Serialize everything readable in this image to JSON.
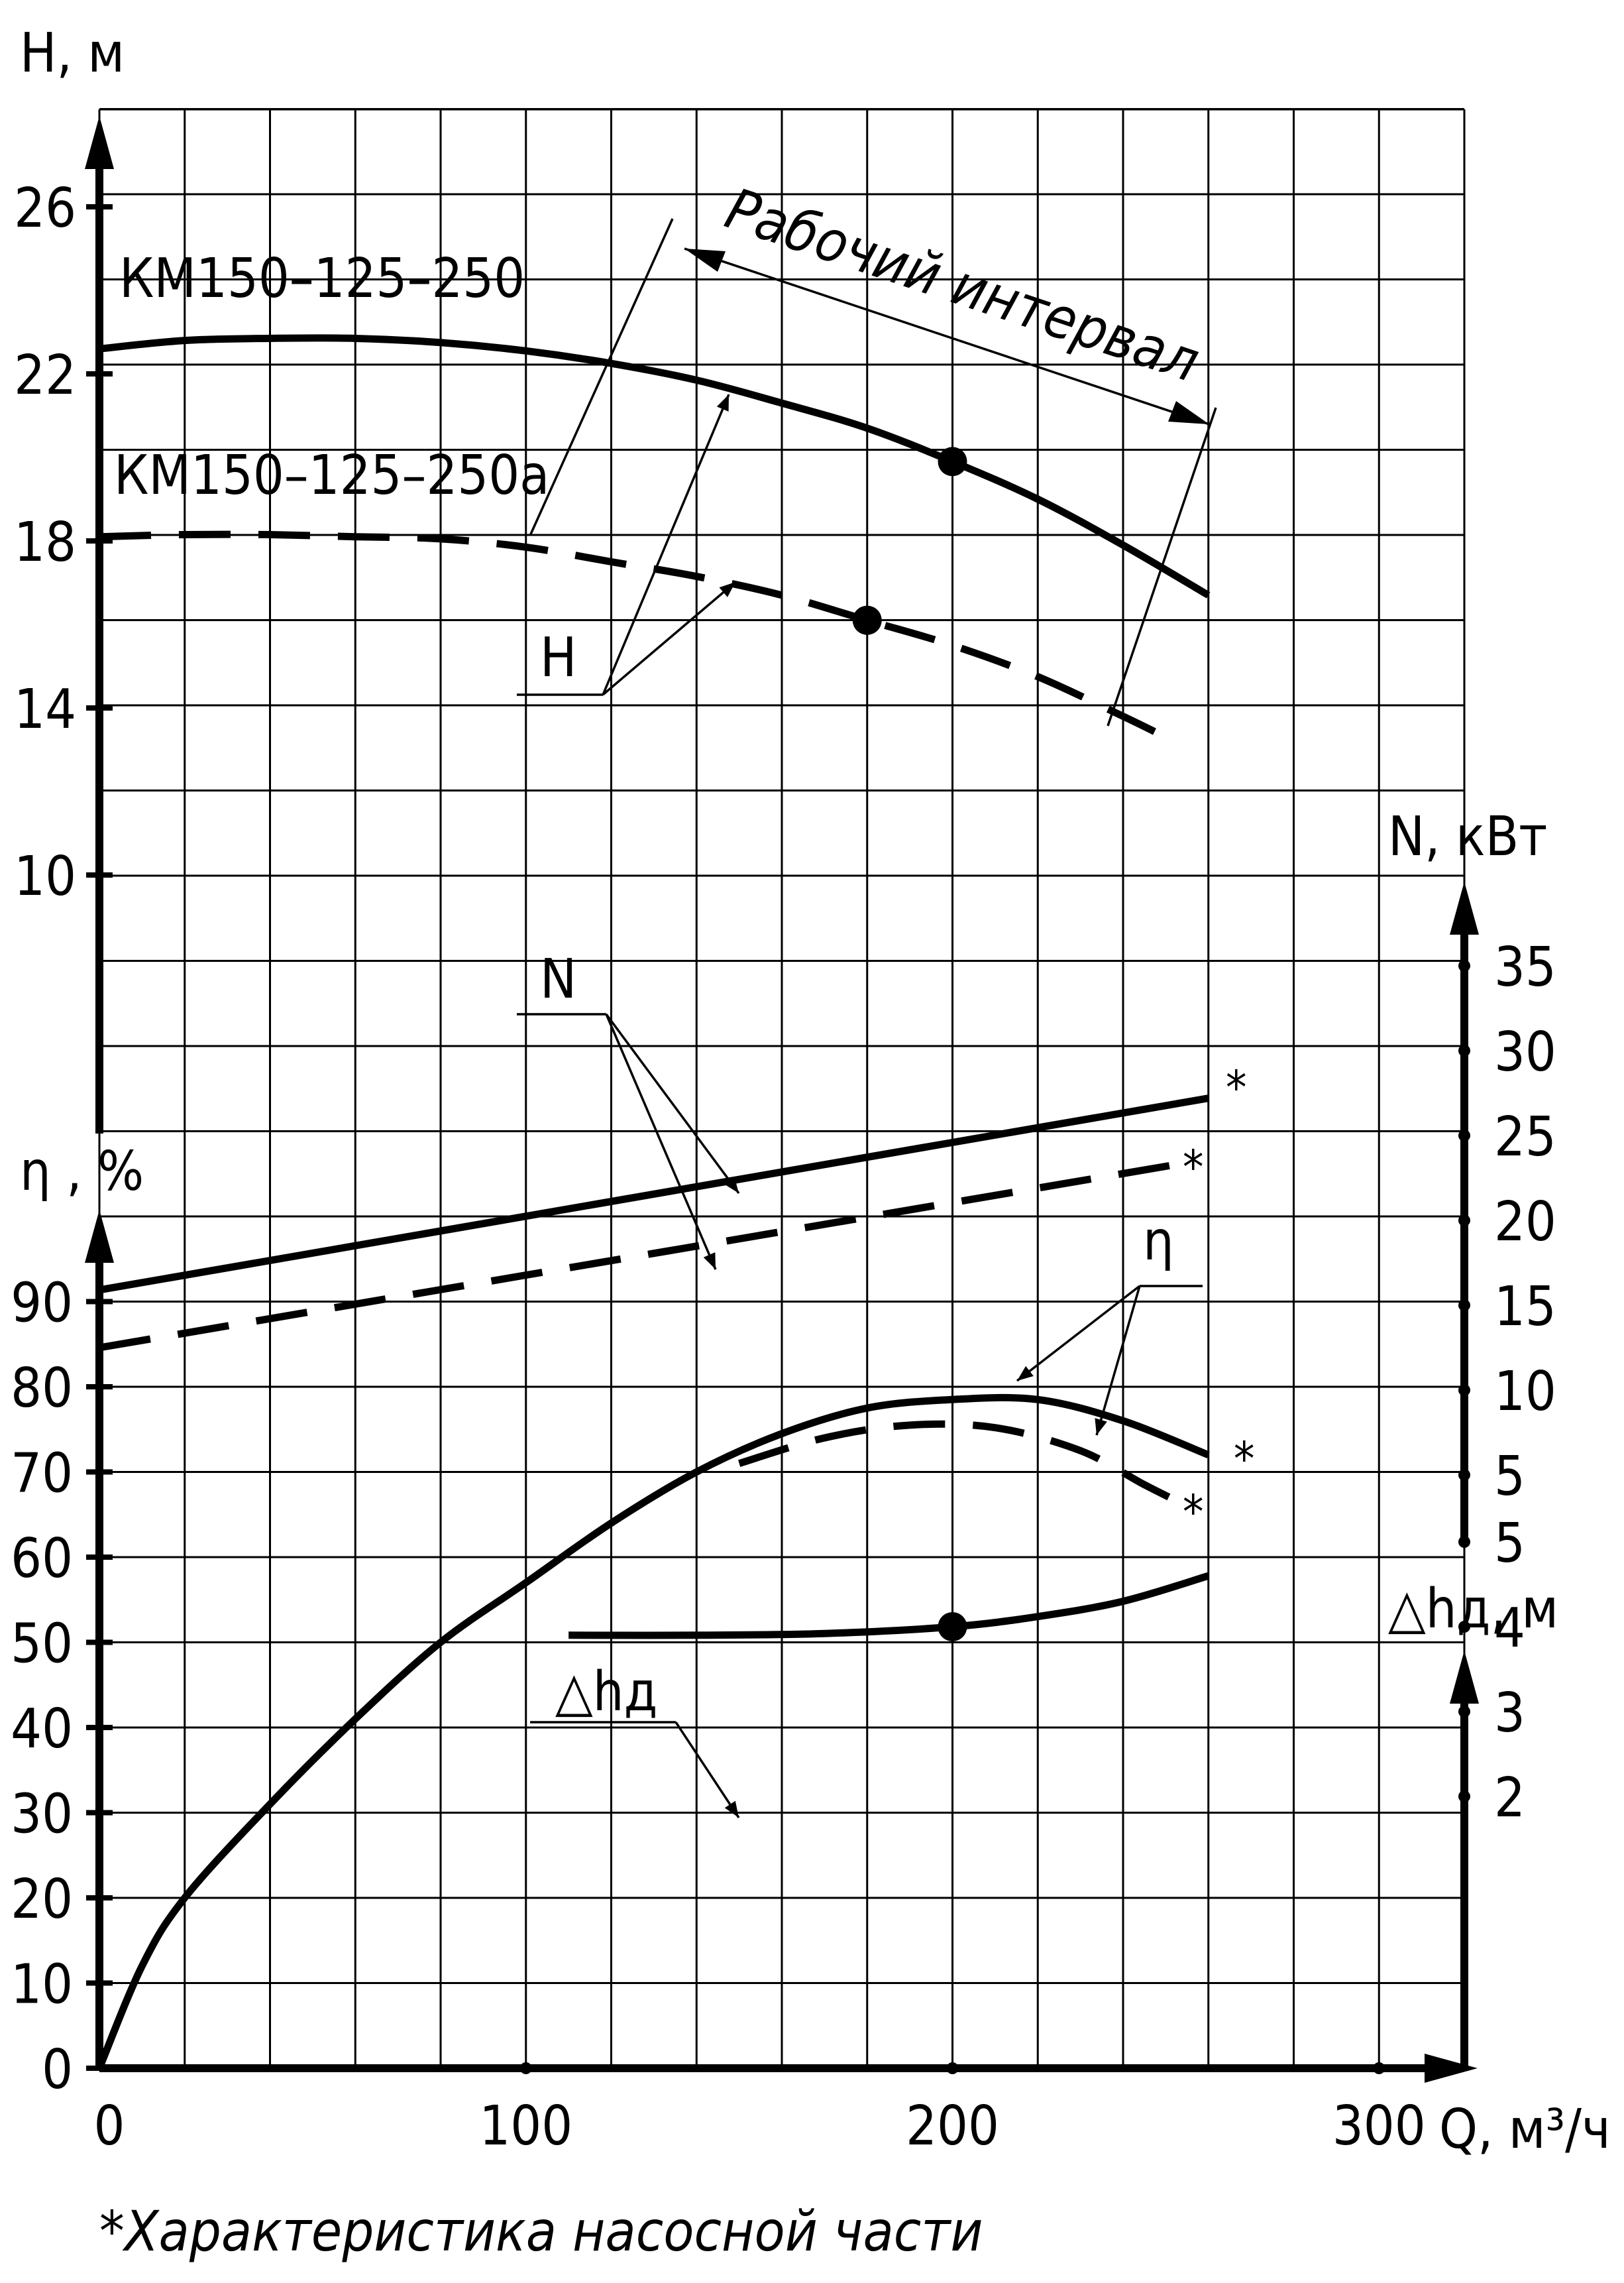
{
  "chart_data": {
    "type": "line",
    "x_axis": {
      "label": "Q, м³/ч",
      "range": [
        0,
        320
      ],
      "tick_labels": [
        "0",
        "100",
        "200",
        "300"
      ],
      "grid_step": 20
    },
    "y_axes": {
      "head": {
        "label": "H, м",
        "range": [
          6,
          28
        ],
        "tick_labels": [
          "10",
          "14",
          "18",
          "22",
          "26"
        ]
      },
      "efficiency": {
        "label": "η , %",
        "range": [
          0,
          100
        ],
        "tick_labels": [
          "0",
          "10",
          "20",
          "30",
          "40",
          "50",
          "60",
          "70",
          "80",
          "90"
        ]
      },
      "power": {
        "label": "N, кВт",
        "range": [
          0,
          35
        ],
        "tick_labels": [
          "5",
          "10",
          "15",
          "20",
          "25",
          "30",
          "35"
        ]
      },
      "npsh": {
        "label": "△hд, м",
        "range": [
          0,
          5
        ],
        "tick_labels": [
          "2",
          "3",
          "4",
          "5"
        ]
      }
    },
    "curve_names": {
      "full": "КМ150–125–250",
      "trimmed": "КМ150–125–250а"
    },
    "series": [
      {
        "name": "КМ150–125–250",
        "group": "H",
        "style": "solid",
        "axis": "head",
        "x": [
          0,
          20,
          40,
          60,
          80,
          100,
          120,
          140,
          160,
          180,
          200,
          220,
          240,
          260
        ],
        "y": [
          22.6,
          22.8,
          22.85,
          22.85,
          22.75,
          22.55,
          22.25,
          21.85,
          21.3,
          20.7,
          19.9,
          19.0,
          17.9,
          16.7
        ]
      },
      {
        "name": "КМ150–125–250а",
        "group": "H",
        "style": "dashed",
        "axis": "head",
        "x": [
          0,
          20,
          40,
          60,
          80,
          100,
          120,
          140,
          160,
          180,
          200,
          220,
          240,
          250
        ],
        "y": [
          18.1,
          18.15,
          18.15,
          18.1,
          18.05,
          17.85,
          17.5,
          17.15,
          16.7,
          16.1,
          15.5,
          14.75,
          13.8,
          13.3
        ]
      },
      {
        "name": "КМ150–125–250",
        "group": "N",
        "style": "solid",
        "axis": "power",
        "x": [
          0,
          260
        ],
        "y": [
          15.9,
          27.2
        ]
      },
      {
        "name": "КМ150–125–250а",
        "group": "N",
        "style": "dashed",
        "axis": "power",
        "x": [
          0,
          255
        ],
        "y": [
          12.5,
          23.4
        ]
      },
      {
        "name": "КМ150–125–250",
        "group": "η",
        "style": "solid",
        "axis": "efficiency",
        "x": [
          0,
          10,
          20,
          40,
          60,
          80,
          100,
          120,
          140,
          160,
          180,
          200,
          220,
          240,
          260
        ],
        "y": [
          0,
          12,
          20,
          31,
          41,
          50,
          57,
          64,
          70,
          74.5,
          77.5,
          78.5,
          78.5,
          76,
          72
        ]
      },
      {
        "name": "КМ150–125–250а",
        "group": "η",
        "style": "dashed",
        "axis": "efficiency",
        "x": [
          150,
          170,
          190,
          210,
          230,
          245,
          255
        ],
        "y": [
          71,
          74,
          75.5,
          75.2,
          72.5,
          68.5,
          66
        ]
      },
      {
        "name": "△hд",
        "group": "△hд",
        "style": "solid",
        "axis": "npsh",
        "x": [
          110,
          140,
          170,
          200,
          220,
          240,
          260
        ],
        "y": [
          3.9,
          3.9,
          3.92,
          4.0,
          4.12,
          4.3,
          4.6
        ]
      }
    ],
    "markers": [
      {
        "series": "H КМ150–125–250",
        "x": 200,
        "y": 19.9
      },
      {
        "series": "H КМ150–125–250а",
        "x": 180,
        "y": 16.1
      },
      {
        "series": "△hд",
        "x": 200,
        "y": 4.0
      }
    ],
    "annotations": {
      "working_range": "Рабочий интервал",
      "leader_H": "H",
      "leader_N": "N",
      "leader_eta": "η",
      "leader_npsh": "△hд",
      "asterisk": "*",
      "footnote": "Характеристика насосной части"
    },
    "grid": true
  }
}
